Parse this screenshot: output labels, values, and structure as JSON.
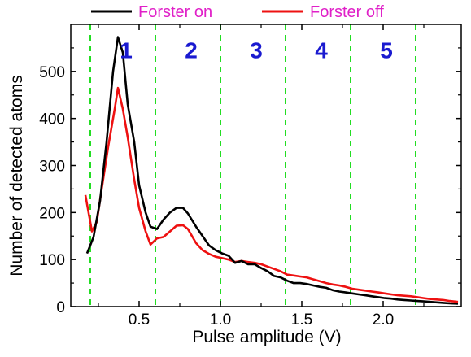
{
  "chart_data": {
    "type": "line",
    "xlabel": "Pulse amplitude (V)",
    "ylabel": "Number of detected atoms",
    "xlim": [
      0.08,
      2.48
    ],
    "ylim": [
      0,
      600
    ],
    "x_ticks": [
      {
        "value": 0.5,
        "label": "0.5"
      },
      {
        "value": 1.0,
        "label": "1.0"
      },
      {
        "value": 1.5,
        "label": "1.5"
      },
      {
        "value": 2.0,
        "label": "2.0"
      }
    ],
    "y_ticks": [
      {
        "value": 0,
        "label": "0"
      },
      {
        "value": 100,
        "label": "100"
      },
      {
        "value": 200,
        "label": "200"
      },
      {
        "value": 300,
        "label": "300"
      },
      {
        "value": 400,
        "label": "400"
      },
      {
        "value": 500,
        "label": "500"
      }
    ],
    "x_minor_ticks": [
      0.25,
      0.75,
      1.25,
      1.75,
      2.25
    ],
    "y_minor_ticks": [
      50,
      150,
      250,
      350,
      450,
      550
    ],
    "grid": false,
    "legend_placement": "top, outside plot",
    "legend_text_color": "#e020c8",
    "series": [
      {
        "name": "Forster on",
        "color": "#000000",
        "points": [
          [
            0.18,
            113
          ],
          [
            0.22,
            148
          ],
          [
            0.26,
            225
          ],
          [
            0.3,
            350
          ],
          [
            0.34,
            500
          ],
          [
            0.37,
            573
          ],
          [
            0.4,
            540
          ],
          [
            0.43,
            430
          ],
          [
            0.47,
            350
          ],
          [
            0.5,
            258
          ],
          [
            0.54,
            200
          ],
          [
            0.57,
            170
          ],
          [
            0.61,
            165
          ],
          [
            0.65,
            185
          ],
          [
            0.69,
            200
          ],
          [
            0.73,
            210
          ],
          [
            0.77,
            210
          ],
          [
            0.8,
            198
          ],
          [
            0.85,
            170
          ],
          [
            0.89,
            150
          ],
          [
            0.93,
            130
          ],
          [
            0.97,
            120
          ],
          [
            1.01,
            113
          ],
          [
            1.05,
            108
          ],
          [
            1.09,
            93
          ],
          [
            1.13,
            97
          ],
          [
            1.17,
            90
          ],
          [
            1.21,
            90
          ],
          [
            1.25,
            82
          ],
          [
            1.29,
            75
          ],
          [
            1.33,
            65
          ],
          [
            1.37,
            62
          ],
          [
            1.41,
            55
          ],
          [
            1.45,
            50
          ],
          [
            1.49,
            50
          ],
          [
            1.53,
            48
          ],
          [
            1.57,
            45
          ],
          [
            1.61,
            42
          ],
          [
            1.65,
            40
          ],
          [
            1.69,
            35
          ],
          [
            1.73,
            32
          ],
          [
            1.77,
            30
          ],
          [
            1.81,
            28
          ],
          [
            1.85,
            26
          ],
          [
            1.89,
            24
          ],
          [
            1.93,
            22
          ],
          [
            1.97,
            20
          ],
          [
            2.01,
            18
          ],
          [
            2.05,
            17
          ],
          [
            2.09,
            15
          ],
          [
            2.13,
            14
          ],
          [
            2.17,
            13
          ],
          [
            2.21,
            12
          ],
          [
            2.25,
            11
          ],
          [
            2.29,
            10
          ],
          [
            2.33,
            9
          ],
          [
            2.37,
            8
          ],
          [
            2.41,
            7
          ],
          [
            2.46,
            6
          ]
        ]
      },
      {
        "name": "Forster off",
        "color": "#ee1111",
        "points": [
          [
            0.17,
            237
          ],
          [
            0.21,
            160
          ],
          [
            0.24,
            180
          ],
          [
            0.27,
            250
          ],
          [
            0.31,
            340
          ],
          [
            0.35,
            420
          ],
          [
            0.37,
            465
          ],
          [
            0.4,
            420
          ],
          [
            0.43,
            360
          ],
          [
            0.47,
            270
          ],
          [
            0.5,
            210
          ],
          [
            0.54,
            160
          ],
          [
            0.57,
            132
          ],
          [
            0.61,
            145
          ],
          [
            0.65,
            148
          ],
          [
            0.69,
            160
          ],
          [
            0.73,
            172
          ],
          [
            0.77,
            173
          ],
          [
            0.8,
            165
          ],
          [
            0.85,
            135
          ],
          [
            0.89,
            120
          ],
          [
            0.93,
            112
          ],
          [
            0.97,
            106
          ],
          [
            1.01,
            103
          ],
          [
            1.05,
            100
          ],
          [
            1.09,
            95
          ],
          [
            1.13,
            97
          ],
          [
            1.17,
            95
          ],
          [
            1.21,
            93
          ],
          [
            1.25,
            90
          ],
          [
            1.29,
            85
          ],
          [
            1.33,
            80
          ],
          [
            1.37,
            75
          ],
          [
            1.41,
            68
          ],
          [
            1.45,
            66
          ],
          [
            1.49,
            64
          ],
          [
            1.53,
            62
          ],
          [
            1.57,
            58
          ],
          [
            1.61,
            54
          ],
          [
            1.65,
            50
          ],
          [
            1.69,
            47
          ],
          [
            1.73,
            45
          ],
          [
            1.77,
            42
          ],
          [
            1.81,
            38
          ],
          [
            1.85,
            36
          ],
          [
            1.89,
            34
          ],
          [
            1.93,
            32
          ],
          [
            1.97,
            30
          ],
          [
            2.01,
            28
          ],
          [
            2.05,
            26
          ],
          [
            2.09,
            24
          ],
          [
            2.13,
            23
          ],
          [
            2.17,
            22
          ],
          [
            2.21,
            20
          ],
          [
            2.25,
            18
          ],
          [
            2.29,
            16
          ],
          [
            2.33,
            15
          ],
          [
            2.37,
            14
          ],
          [
            2.41,
            12
          ],
          [
            2.46,
            10
          ]
        ]
      }
    ],
    "region_boundaries": {
      "color": "#22dd22",
      "x": [
        0.2,
        0.6,
        1.0,
        1.4,
        1.8,
        2.2
      ]
    },
    "region_labels": {
      "color": "#1a1ad0",
      "items": [
        {
          "text": "1",
          "x": 0.42,
          "y": 528
        },
        {
          "text": "2",
          "x": 0.82,
          "y": 528
        },
        {
          "text": "3",
          "x": 1.22,
          "y": 528
        },
        {
          "text": "4",
          "x": 1.62,
          "y": 528
        },
        {
          "text": "5",
          "x": 2.02,
          "y": 528
        }
      ]
    }
  }
}
